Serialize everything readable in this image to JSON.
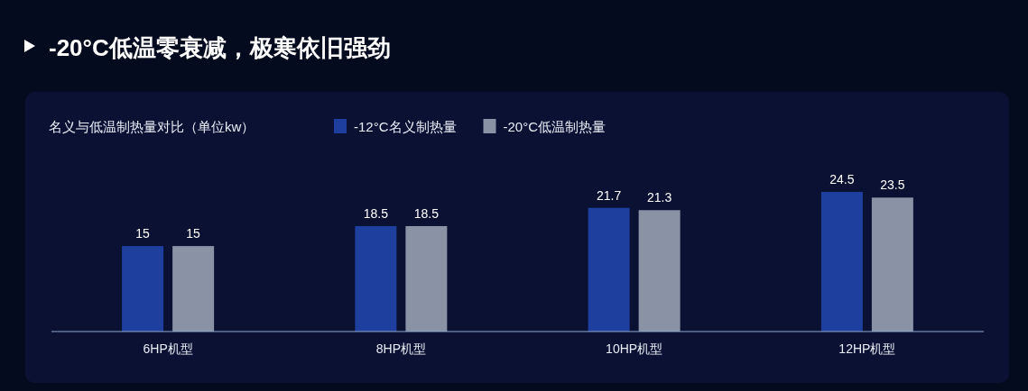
{
  "chart_data": {
    "type": "bar",
    "title": "-20°C低温零衰减，极寒依旧强劲",
    "subtitle": "名义与低温制热量对比（单位kw）",
    "categories": [
      "6HP机型",
      "8HP机型",
      "10HP机型",
      "12HP机型"
    ],
    "series": [
      {
        "name": "-12°C名义制热量",
        "color": "#1f3f9e",
        "values": [
          15,
          18.5,
          21.7,
          24.5
        ]
      },
      {
        "name": "-20°C低温制热量",
        "color": "#8a92a6",
        "values": [
          15,
          18.5,
          21.3,
          23.5
        ]
      }
    ],
    "data_labels": true,
    "legend": "top"
  }
}
